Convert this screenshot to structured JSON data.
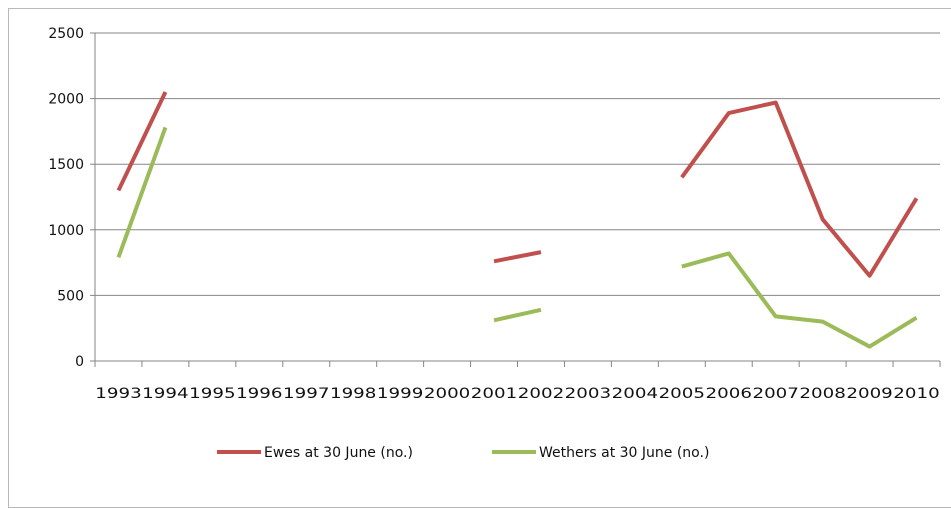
{
  "chart_data": {
    "type": "line",
    "title": "",
    "xlabel": "",
    "ylabel": "",
    "categories": [
      "1993",
      "1994",
      "1995",
      "1996",
      "1997",
      "1998",
      "1999",
      "2000",
      "2001",
      "2002",
      "2003",
      "2004",
      "2005",
      "2006",
      "2007",
      "2008",
      "2009",
      "2010"
    ],
    "ylim": [
      0,
      2500
    ],
    "yticks": [
      "0",
      "500",
      "1000",
      "1500",
      "2000",
      "2500"
    ],
    "grid": true,
    "legend_position": "bottom",
    "series": [
      {
        "name": "Ewes at 30 June (no.)",
        "color": "#c0504d",
        "values": [
          1300,
          2050,
          null,
          null,
          null,
          null,
          null,
          null,
          760,
          830,
          null,
          null,
          1400,
          1890,
          1970,
          1080,
          650,
          1240
        ]
      },
      {
        "name": "Wethers at 30 June (no.)",
        "color": "#9bbb59",
        "values": [
          790,
          1780,
          null,
          null,
          null,
          null,
          null,
          null,
          310,
          390,
          null,
          null,
          720,
          820,
          340,
          300,
          110,
          330
        ]
      }
    ]
  }
}
